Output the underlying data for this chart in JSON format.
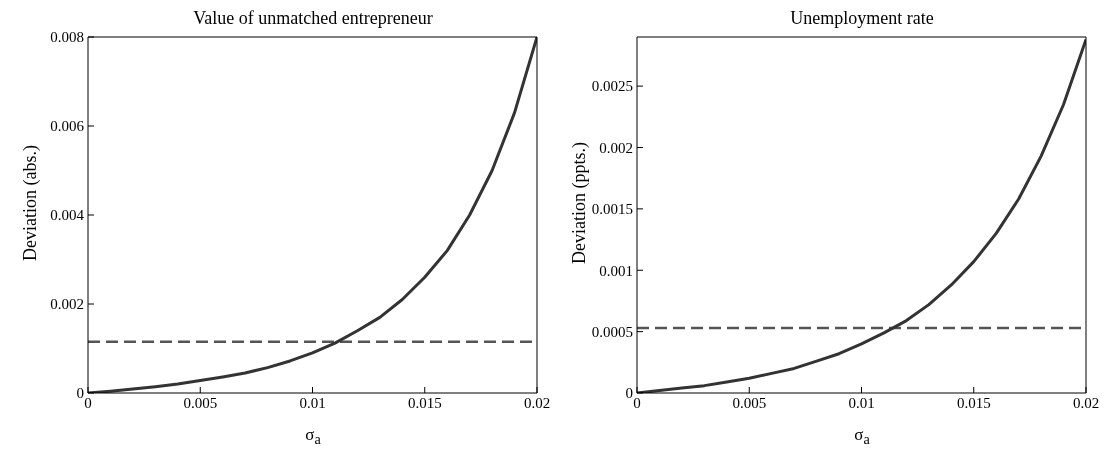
{
  "chart_data": [
    {
      "type": "line",
      "title": "Value of unmatched entrepreneur",
      "xlabel": "σ$_{a}$",
      "ylabel": "Deviation (abs.)",
      "x": [
        0,
        0.001,
        0.002,
        0.003,
        0.004,
        0.005,
        0.006,
        0.007,
        0.008,
        0.009,
        0.01,
        0.011,
        0.012,
        0.013,
        0.014,
        0.015,
        0.016,
        0.017,
        0.018,
        0.019,
        0.02
      ],
      "series": [
        {
          "color": "#333333",
          "values": [
            0,
            4e-05,
            9e-05,
            0.00014,
            0.0002,
            0.00028,
            0.00036,
            0.00045,
            0.00057,
            0.00072,
            0.0009,
            0.00112,
            0.0014,
            0.0017,
            0.0021,
            0.0026,
            0.0032,
            0.004,
            0.005,
            0.0063,
            0.008
          ]
        }
      ],
      "xlim": [
        0,
        0.02
      ],
      "xticks": [
        0,
        0.005,
        0.01,
        0.015,
        0.02
      ],
      "ylim": [
        0,
        0.008
      ],
      "yticks": [
        0,
        0.002,
        0.004,
        0.006,
        0.008
      ],
      "ref_lines": [
        {
          "axis": "y",
          "value": 0.00115,
          "color": "#555555",
          "line_style": "dashed"
        }
      ],
      "grid": false,
      "legend": false,
      "marker": "none",
      "line_style": "solid"
    },
    {
      "type": "line",
      "title": "Unemployment rate",
      "xlabel": "σ$_{a}$",
      "ylabel": "Deviation (ppts.)",
      "x": [
        0,
        0.001,
        0.002,
        0.003,
        0.004,
        0.005,
        0.006,
        0.007,
        0.008,
        0.009,
        0.01,
        0.011,
        0.012,
        0.013,
        0.014,
        0.015,
        0.016,
        0.017,
        0.018,
        0.019,
        0.02
      ],
      "series": [
        {
          "color": "#333333",
          "values": [
            0,
            2e-05,
            4e-05,
            6e-05,
            9e-05,
            0.00012,
            0.00016,
            0.0002,
            0.00026,
            0.00032,
            0.0004,
            0.00049,
            0.00059,
            0.00072,
            0.00088,
            0.00107,
            0.0013,
            0.00158,
            0.00193,
            0.00235,
            0.00288
          ]
        }
      ],
      "xlim": [
        0,
        0.02
      ],
      "xticks": [
        0,
        0.005,
        0.01,
        0.015,
        0.02
      ],
      "ylim": [
        0,
        0.0029
      ],
      "yticks": [
        0,
        0.0005,
        0.001,
        0.0015,
        0.002,
        0.0025
      ],
      "ref_lines": [
        {
          "axis": "y",
          "value": 0.00053,
          "color": "#555555",
          "line_style": "dashed"
        }
      ],
      "grid": false,
      "legend": false,
      "marker": "none",
      "line_style": "solid"
    }
  ]
}
